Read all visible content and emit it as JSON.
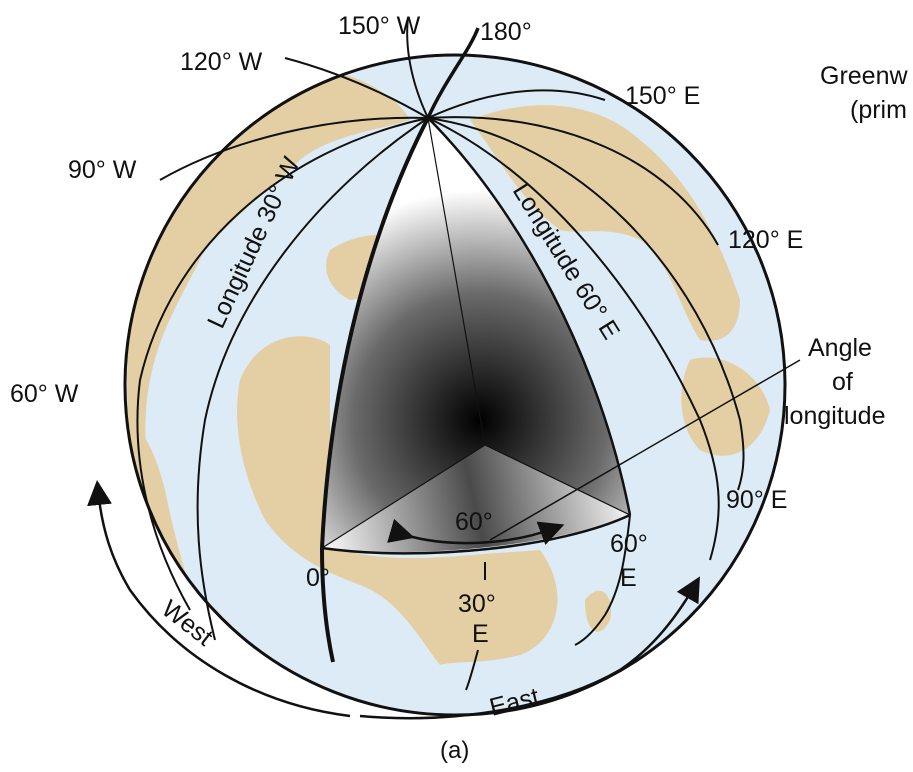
{
  "meridian_labels": {
    "w150": "150° W",
    "m180": "180°",
    "w120": "120° W",
    "e150": "150° E",
    "w90": "90° W",
    "e120": "120° E",
    "w60": "60° W",
    "e90": "90° E"
  },
  "greenwich": {
    "line1": "Greenw",
    "line2": "(prim"
  },
  "curve_labels": {
    "long30w": "Longitude 30° W",
    "long60e": "Longitude 60° E"
  },
  "angle_callout": {
    "line1": "Angle",
    "line2": "of",
    "line3": "longitude"
  },
  "equator_labels": {
    "angle": "60°",
    "zero": "0°",
    "e30_num": "30°",
    "e30_dir": "E",
    "e60_num": "60°",
    "e60_dir": "E"
  },
  "direction_labels": {
    "west": "West",
    "east": "East"
  },
  "caption": "(a)",
  "colors": {
    "ocean": "#dcebf5",
    "land": "#e4cfa5",
    "lines": "#111111",
    "wedge_dark": "#000000",
    "wedge_light": "#ffffff"
  }
}
